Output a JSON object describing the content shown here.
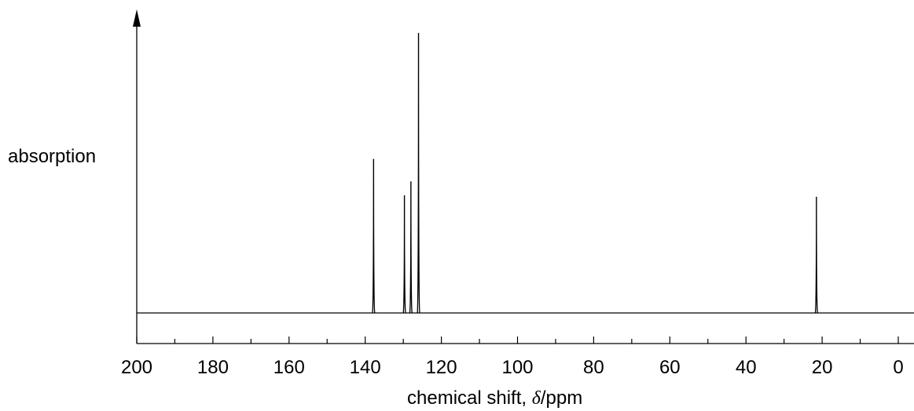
{
  "chart_data": {
    "type": "line",
    "ylabel": "absorption",
    "xlabel_prefix": "chemical shift, ",
    "xlabel_symbol": "δ",
    "xlabel_suffix": "/ppm",
    "xlim": [
      200,
      -3
    ],
    "x_reversed": true,
    "xticks": [
      200,
      180,
      160,
      140,
      120,
      100,
      80,
      60,
      40,
      20,
      0
    ],
    "minor_tick_step": 10,
    "peaks": [
      {
        "x": 137.8,
        "height": 0.55
      },
      {
        "x": 129.7,
        "height": 0.42
      },
      {
        "x": 128.0,
        "height": 0.47
      },
      {
        "x": 126.0,
        "height": 1.0
      },
      {
        "x": 21.5,
        "height": 0.415
      }
    ],
    "baseline": 0,
    "ymax": 1.0
  }
}
